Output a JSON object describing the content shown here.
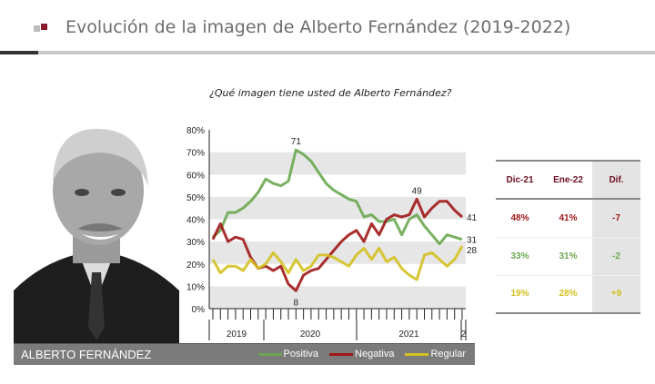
{
  "header": {
    "title": "Evolución de la imagen de Alberto Fernández (2019-2022)"
  },
  "photo": {
    "caption": "ALBERTO FERNÁNDEZ"
  },
  "chart_data": {
    "type": "line",
    "title": "¿Qué imagen tiene usted de Alberto Fernández?",
    "ylim": [
      0,
      80
    ],
    "yticks": [
      "0%",
      "10%",
      "20%",
      "30%",
      "40%",
      "50%",
      "60%",
      "70%",
      "80%"
    ],
    "xgroups": [
      "2019",
      "2020",
      "2021",
      "2"
    ],
    "series": [
      {
        "name": "Positiva",
        "color": "#6aa84f",
        "values": [
          32,
          35,
          43,
          43,
          45,
          48,
          52,
          58,
          56,
          55,
          57,
          71,
          69,
          66,
          61,
          56,
          53,
          51,
          49,
          48,
          41,
          42,
          39,
          39,
          40,
          33,
          40,
          42,
          37,
          33,
          29,
          33,
          32,
          31
        ]
      },
      {
        "name": "Negativa",
        "color": "#a01818",
        "values": [
          31,
          38,
          30,
          32,
          31,
          23,
          18,
          19,
          17,
          19,
          11,
          8,
          15,
          17,
          18,
          22,
          26,
          30,
          33,
          35,
          30,
          38,
          33,
          40,
          42,
          41,
          42,
          49,
          41,
          45,
          48,
          48,
          44,
          41
        ]
      },
      {
        "name": "Regular",
        "color": "#d4c020",
        "values": [
          22,
          16,
          19,
          19,
          17,
          22,
          18,
          20,
          25,
          21,
          16,
          22,
          17,
          19,
          24,
          24,
          23,
          21,
          19,
          24,
          27,
          22,
          27,
          21,
          23,
          18,
          15,
          13,
          24,
          25,
          22,
          19,
          22,
          28
        ]
      }
    ],
    "annotations": [
      "71",
      "8",
      "49",
      "41",
      "31",
      "28"
    ],
    "legend_position": "bottom"
  },
  "table": {
    "headers": [
      "Dic-21",
      "Ene-22",
      "Dif."
    ],
    "rows": [
      {
        "cells": [
          "48%",
          "41%",
          "-7"
        ],
        "color": "#a01818"
      },
      {
        "cells": [
          "33%",
          "31%",
          "-2"
        ],
        "color": "#6aa84f"
      },
      {
        "cells": [
          "19%",
          "28%",
          "+9"
        ],
        "color": "#d4c020"
      }
    ]
  }
}
